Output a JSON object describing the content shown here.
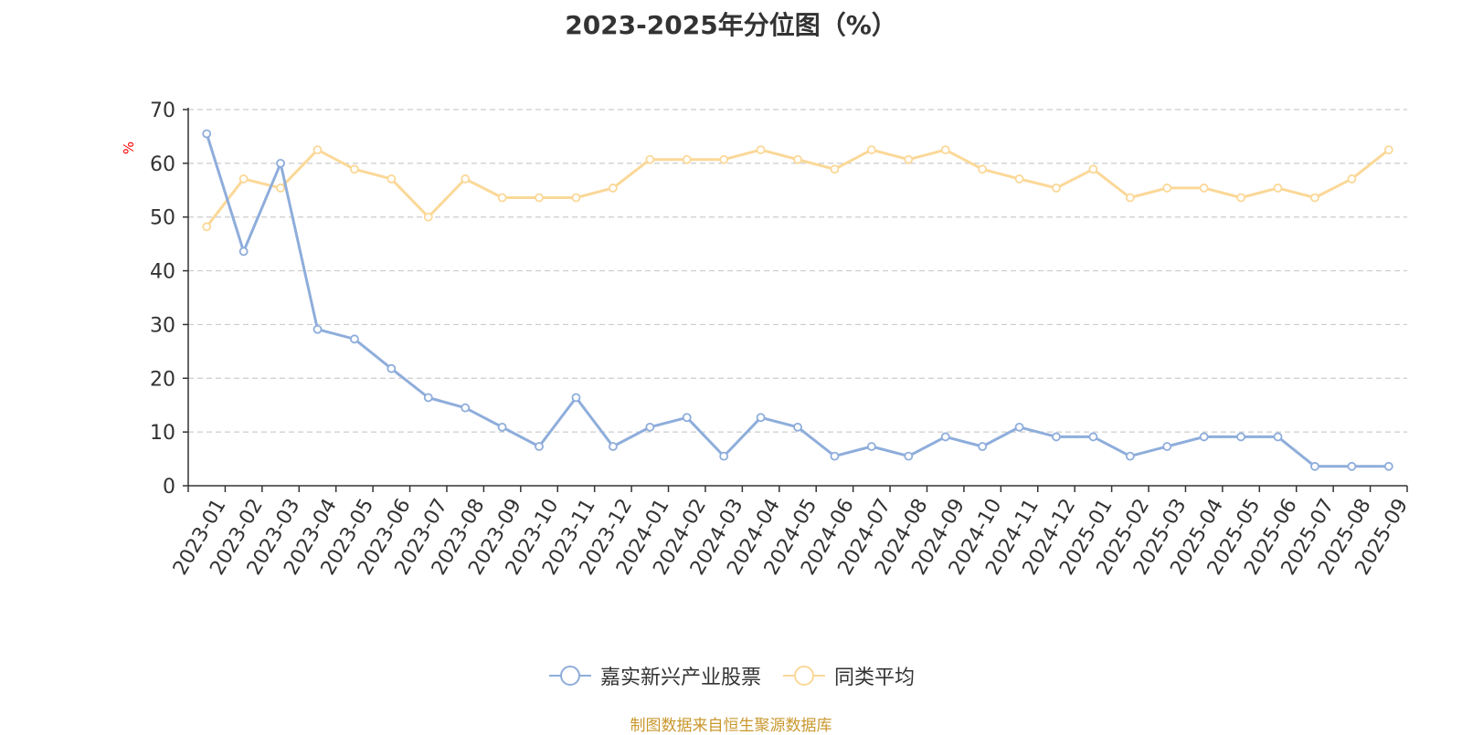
{
  "chart_data": {
    "type": "line",
    "title": "2023-2025年分位图（%）",
    "ylabel": "%",
    "xlabel": "",
    "ylim": [
      0,
      70
    ],
    "yticks": [
      0,
      10,
      20,
      30,
      40,
      50,
      60,
      70
    ],
    "grid": true,
    "legend_position": "bottom-center",
    "categories": [
      "2023-01",
      "2023-02",
      "2023-03",
      "2023-04",
      "2023-05",
      "2023-06",
      "2023-07",
      "2023-08",
      "2023-09",
      "2023-10",
      "2023-11",
      "2023-12",
      "2024-01",
      "2024-02",
      "2024-03",
      "2024-04",
      "2024-05",
      "2024-06",
      "2024-07",
      "2024-08",
      "2024-09",
      "2024-10",
      "2024-11",
      "2024-12",
      "2025-01",
      "2025-02",
      "2025-03",
      "2025-04",
      "2025-05",
      "2025-06",
      "2025-07",
      "2025-08",
      "2025-09"
    ],
    "series": [
      {
        "name": "嘉实新兴产业股票",
        "color": "#8eaddb",
        "values": [
          65.5,
          43.6,
          60.0,
          29.1,
          27.3,
          21.8,
          16.4,
          14.5,
          10.9,
          7.3,
          16.4,
          7.3,
          10.9,
          12.7,
          5.5,
          12.7,
          10.9,
          5.5,
          7.3,
          5.5,
          9.1,
          7.3,
          10.9,
          9.1,
          9.1,
          5.5,
          7.3,
          9.1,
          9.1,
          9.1,
          3.6,
          3.6,
          3.6
        ]
      },
      {
        "name": "同类平均",
        "color": "#fbd898",
        "values": [
          48.2,
          57.1,
          55.4,
          62.5,
          58.9,
          57.1,
          50.0,
          57.1,
          53.6,
          53.6,
          53.6,
          55.4,
          60.7,
          60.7,
          60.7,
          62.5,
          60.7,
          58.9,
          62.5,
          60.7,
          62.5,
          58.9,
          57.1,
          55.4,
          58.9,
          53.6,
          55.4,
          55.4,
          53.6,
          55.4,
          53.6,
          57.1,
          62.5
        ]
      }
    ]
  },
  "source_note": "制图数据来自恒生聚源数据库",
  "colors": {
    "axis_label_color": "#ff0000",
    "source_color": "#c9982e"
  }
}
